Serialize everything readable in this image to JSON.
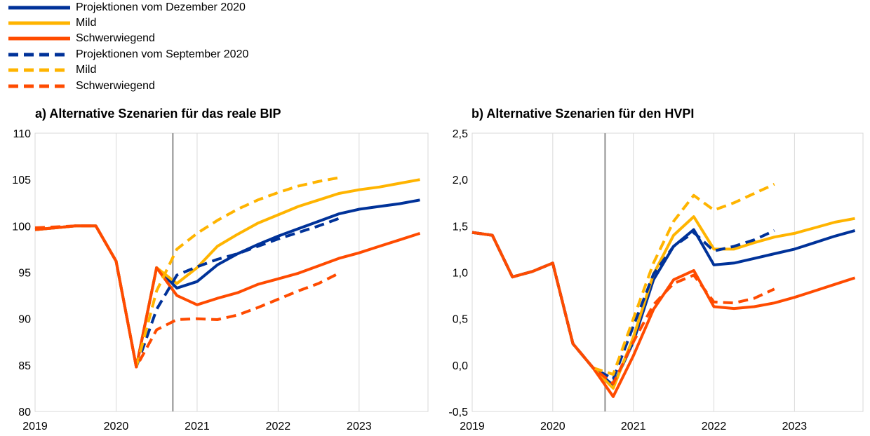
{
  "legend": [
    {
      "label": "Projektionen vom Dezember 2020",
      "color": "#003299",
      "dashed": false
    },
    {
      "label": "Mild",
      "color": "#FFB400",
      "dashed": false
    },
    {
      "label": "Schwerwiegend",
      "color": "#FF4B00",
      "dashed": false
    },
    {
      "label": "Projektionen vom September 2020",
      "color": "#003299",
      "dashed": true
    },
    {
      "label": "Mild",
      "color": "#FFB400",
      "dashed": true
    },
    {
      "label": "Schwerwiegend",
      "color": "#FF4B00",
      "dashed": true
    }
  ],
  "chart_data": [
    {
      "type": "line",
      "title": "a) Alternative Szenarien für das reale BIP",
      "xlabel": "",
      "ylabel": "",
      "x_tick_labels": [
        "2019",
        "2020",
        "2021",
        "2022",
        "2023"
      ],
      "x_range": [
        2019,
        2023.85
      ],
      "ylim": [
        80,
        110
      ],
      "y_ticks": [
        80,
        85,
        90,
        95,
        100,
        105,
        110
      ],
      "y_tick_labels": [
        "80",
        "85",
        "90",
        "95",
        "100",
        "105",
        "110"
      ],
      "vertical_marker_x": 2020.7,
      "grid": "vertical",
      "series": [
        {
          "name": "Projektionen vom Dezember 2020",
          "color": "#003299",
          "dashed": false,
          "points": [
            [
              2019.0,
              99.6
            ],
            [
              2019.25,
              99.8
            ],
            [
              2019.5,
              100.0
            ],
            [
              2019.75,
              100.0
            ],
            [
              2020.0,
              96.2
            ],
            [
              2020.25,
              84.8
            ],
            [
              2020.5,
              95.5
            ],
            [
              2020.75,
              93.3
            ],
            [
              2021.0,
              94.0
            ],
            [
              2021.25,
              95.8
            ],
            [
              2021.5,
              97.0
            ],
            [
              2021.75,
              98.0
            ],
            [
              2022.0,
              98.9
            ],
            [
              2022.25,
              99.7
            ],
            [
              2022.5,
              100.5
            ],
            [
              2022.75,
              101.3
            ],
            [
              2023.0,
              101.8
            ],
            [
              2023.25,
              102.1
            ],
            [
              2023.5,
              102.4
            ],
            [
              2023.75,
              102.8
            ]
          ]
        },
        {
          "name": "Mild",
          "color": "#FFB400",
          "dashed": false,
          "points": [
            [
              2019.0,
              99.6
            ],
            [
              2019.25,
              99.8
            ],
            [
              2019.5,
              100.0
            ],
            [
              2019.75,
              100.0
            ],
            [
              2020.0,
              96.2
            ],
            [
              2020.25,
              84.8
            ],
            [
              2020.5,
              95.5
            ],
            [
              2020.75,
              93.8
            ],
            [
              2021.0,
              95.5
            ],
            [
              2021.25,
              97.8
            ],
            [
              2021.5,
              99.1
            ],
            [
              2021.75,
              100.3
            ],
            [
              2022.0,
              101.2
            ],
            [
              2022.25,
              102.1
            ],
            [
              2022.5,
              102.8
            ],
            [
              2022.75,
              103.5
            ],
            [
              2023.0,
              103.9
            ],
            [
              2023.25,
              104.2
            ],
            [
              2023.5,
              104.6
            ],
            [
              2023.75,
              105.0
            ]
          ]
        },
        {
          "name": "Schwerwiegend",
          "color": "#FF4B00",
          "dashed": false,
          "points": [
            [
              2019.0,
              99.6
            ],
            [
              2019.25,
              99.8
            ],
            [
              2019.5,
              100.0
            ],
            [
              2019.75,
              100.0
            ],
            [
              2020.0,
              96.2
            ],
            [
              2020.25,
              84.8
            ],
            [
              2020.5,
              95.5
            ],
            [
              2020.75,
              92.5
            ],
            [
              2021.0,
              91.5
            ],
            [
              2021.25,
              92.2
            ],
            [
              2021.5,
              92.8
            ],
            [
              2021.75,
              93.7
            ],
            [
              2022.0,
              94.3
            ],
            [
              2022.25,
              94.9
            ],
            [
              2022.5,
              95.7
            ],
            [
              2022.75,
              96.5
            ],
            [
              2023.0,
              97.1
            ],
            [
              2023.25,
              97.8
            ],
            [
              2023.5,
              98.5
            ],
            [
              2023.75,
              99.2
            ]
          ]
        },
        {
          "name": "Projektionen vom September 2020",
          "color": "#003299",
          "dashed": true,
          "points": [
            [
              2020.25,
              84.8
            ],
            [
              2020.5,
              91.0
            ],
            [
              2020.75,
              94.7
            ],
            [
              2021.0,
              95.6
            ],
            [
              2021.25,
              96.4
            ],
            [
              2021.5,
              97.0
            ],
            [
              2021.75,
              97.8
            ],
            [
              2022.0,
              98.6
            ],
            [
              2022.25,
              99.3
            ],
            [
              2022.5,
              100.0
            ],
            [
              2022.75,
              100.8
            ]
          ]
        },
        {
          "name": "Mild",
          "color": "#FFB400",
          "dashed": true,
          "points": [
            [
              2020.25,
              84.8
            ],
            [
              2020.5,
              93.0
            ],
            [
              2020.75,
              97.5
            ],
            [
              2021.0,
              99.2
            ],
            [
              2021.25,
              100.6
            ],
            [
              2021.5,
              101.8
            ],
            [
              2021.75,
              102.8
            ],
            [
              2022.0,
              103.6
            ],
            [
              2022.25,
              104.3
            ],
            [
              2022.5,
              104.8
            ],
            [
              2022.75,
              105.2
            ]
          ]
        },
        {
          "name": "Schwerwiegend",
          "color": "#FF4B00",
          "dashed": true,
          "points": [
            [
              2019.0,
              99.8
            ],
            [
              2019.25,
              99.9
            ],
            [
              2019.5,
              100.0
            ],
            [
              2019.75,
              100.0
            ],
            [
              2020.0,
              96.2
            ],
            [
              2020.25,
              84.8
            ],
            [
              2020.5,
              88.8
            ],
            [
              2020.75,
              89.9
            ],
            [
              2021.0,
              90.0
            ],
            [
              2021.25,
              89.9
            ],
            [
              2021.5,
              90.4
            ],
            [
              2021.75,
              91.2
            ],
            [
              2022.0,
              92.1
            ],
            [
              2022.25,
              93.0
            ],
            [
              2022.5,
              93.8
            ],
            [
              2022.75,
              94.9
            ]
          ]
        }
      ]
    },
    {
      "type": "line",
      "title": "b) Alternative Szenarien für den HVPI",
      "xlabel": "",
      "ylabel": "",
      "x_tick_labels": [
        "2019",
        "2020",
        "2021",
        "2022",
        "2023"
      ],
      "x_range": [
        2019,
        2023.85
      ],
      "ylim": [
        -0.5,
        2.5
      ],
      "y_ticks": [
        -0.5,
        0.0,
        0.5,
        1.0,
        1.5,
        2.0,
        2.5
      ],
      "y_tick_labels": [
        "-0,5",
        "0,0",
        "0,5",
        "1,0",
        "1,5",
        "2,0",
        "2,5"
      ],
      "vertical_marker_x": 2020.65,
      "grid": "vertical",
      "series": [
        {
          "name": "Projektionen vom Dezember 2020",
          "color": "#003299",
          "dashed": false,
          "points": [
            [
              2019.0,
              1.43
            ],
            [
              2019.25,
              1.4
            ],
            [
              2019.5,
              0.95
            ],
            [
              2019.75,
              1.01
            ],
            [
              2020.0,
              1.1
            ],
            [
              2020.25,
              0.23
            ],
            [
              2020.5,
              -0.03
            ],
            [
              2020.75,
              -0.22
            ],
            [
              2021.0,
              0.25
            ],
            [
              2021.25,
              0.92
            ],
            [
              2021.5,
              1.28
            ],
            [
              2021.75,
              1.46
            ],
            [
              2022.0,
              1.08
            ],
            [
              2022.25,
              1.1
            ],
            [
              2022.5,
              1.15
            ],
            [
              2022.75,
              1.2
            ],
            [
              2023.0,
              1.25
            ],
            [
              2023.25,
              1.32
            ],
            [
              2023.5,
              1.39
            ],
            [
              2023.75,
              1.45
            ]
          ]
        },
        {
          "name": "Mild",
          "color": "#FFB400",
          "dashed": false,
          "points": [
            [
              2019.0,
              1.43
            ],
            [
              2019.25,
              1.4
            ],
            [
              2019.5,
              0.95
            ],
            [
              2019.75,
              1.01
            ],
            [
              2020.0,
              1.1
            ],
            [
              2020.25,
              0.23
            ],
            [
              2020.5,
              -0.03
            ],
            [
              2020.75,
              -0.25
            ],
            [
              2021.0,
              0.3
            ],
            [
              2021.25,
              0.98
            ],
            [
              2021.5,
              1.4
            ],
            [
              2021.75,
              1.6
            ],
            [
              2022.0,
              1.25
            ],
            [
              2022.25,
              1.25
            ],
            [
              2022.5,
              1.32
            ],
            [
              2022.75,
              1.38
            ],
            [
              2023.0,
              1.42
            ],
            [
              2023.25,
              1.48
            ],
            [
              2023.5,
              1.54
            ],
            [
              2023.75,
              1.58
            ]
          ]
        },
        {
          "name": "Schwerwiegend",
          "color": "#FF4B00",
          "dashed": false,
          "points": [
            [
              2019.0,
              1.43
            ],
            [
              2019.25,
              1.4
            ],
            [
              2019.5,
              0.95
            ],
            [
              2019.75,
              1.01
            ],
            [
              2020.0,
              1.1
            ],
            [
              2020.25,
              0.23
            ],
            [
              2020.5,
              -0.03
            ],
            [
              2020.75,
              -0.34
            ],
            [
              2021.0,
              0.1
            ],
            [
              2021.25,
              0.6
            ],
            [
              2021.5,
              0.92
            ],
            [
              2021.75,
              1.02
            ],
            [
              2022.0,
              0.63
            ],
            [
              2022.25,
              0.61
            ],
            [
              2022.5,
              0.63
            ],
            [
              2022.75,
              0.67
            ],
            [
              2023.0,
              0.73
            ],
            [
              2023.25,
              0.8
            ],
            [
              2023.5,
              0.87
            ],
            [
              2023.75,
              0.94
            ]
          ]
        },
        {
          "name": "Projektionen vom September 2020",
          "color": "#003299",
          "dashed": true,
          "points": [
            [
              2019.0,
              1.43
            ],
            [
              2019.25,
              1.4
            ],
            [
              2019.5,
              0.95
            ],
            [
              2019.75,
              1.01
            ],
            [
              2020.0,
              1.1
            ],
            [
              2020.25,
              0.23
            ],
            [
              2020.5,
              -0.03
            ],
            [
              2020.75,
              -0.15
            ],
            [
              2021.0,
              0.42
            ],
            [
              2021.25,
              0.98
            ],
            [
              2021.5,
              1.28
            ],
            [
              2021.75,
              1.43
            ],
            [
              2022.0,
              1.23
            ],
            [
              2022.25,
              1.28
            ],
            [
              2022.5,
              1.35
            ],
            [
              2022.75,
              1.45
            ]
          ]
        },
        {
          "name": "Mild",
          "color": "#FFB400",
          "dashed": true,
          "points": [
            [
              2020.5,
              -0.03
            ],
            [
              2020.75,
              -0.1
            ],
            [
              2021.0,
              0.5
            ],
            [
              2021.25,
              1.1
            ],
            [
              2021.5,
              1.55
            ],
            [
              2021.75,
              1.83
            ],
            [
              2022.0,
              1.67
            ],
            [
              2022.25,
              1.75
            ],
            [
              2022.5,
              1.85
            ],
            [
              2022.75,
              1.95
            ]
          ]
        },
        {
          "name": "Schwerwiegend",
          "color": "#FF4B00",
          "dashed": true,
          "points": [
            [
              2019.0,
              1.43
            ],
            [
              2019.25,
              1.4
            ],
            [
              2019.5,
              0.95
            ],
            [
              2019.75,
              1.01
            ],
            [
              2020.0,
              1.1
            ],
            [
              2020.25,
              0.23
            ],
            [
              2020.5,
              -0.03
            ],
            [
              2020.75,
              -0.2
            ],
            [
              2021.0,
              0.25
            ],
            [
              2021.25,
              0.65
            ],
            [
              2021.5,
              0.88
            ],
            [
              2021.75,
              0.97
            ],
            [
              2022.0,
              0.68
            ],
            [
              2022.25,
              0.67
            ],
            [
              2022.5,
              0.72
            ],
            [
              2022.75,
              0.82
            ]
          ]
        }
      ]
    }
  ]
}
